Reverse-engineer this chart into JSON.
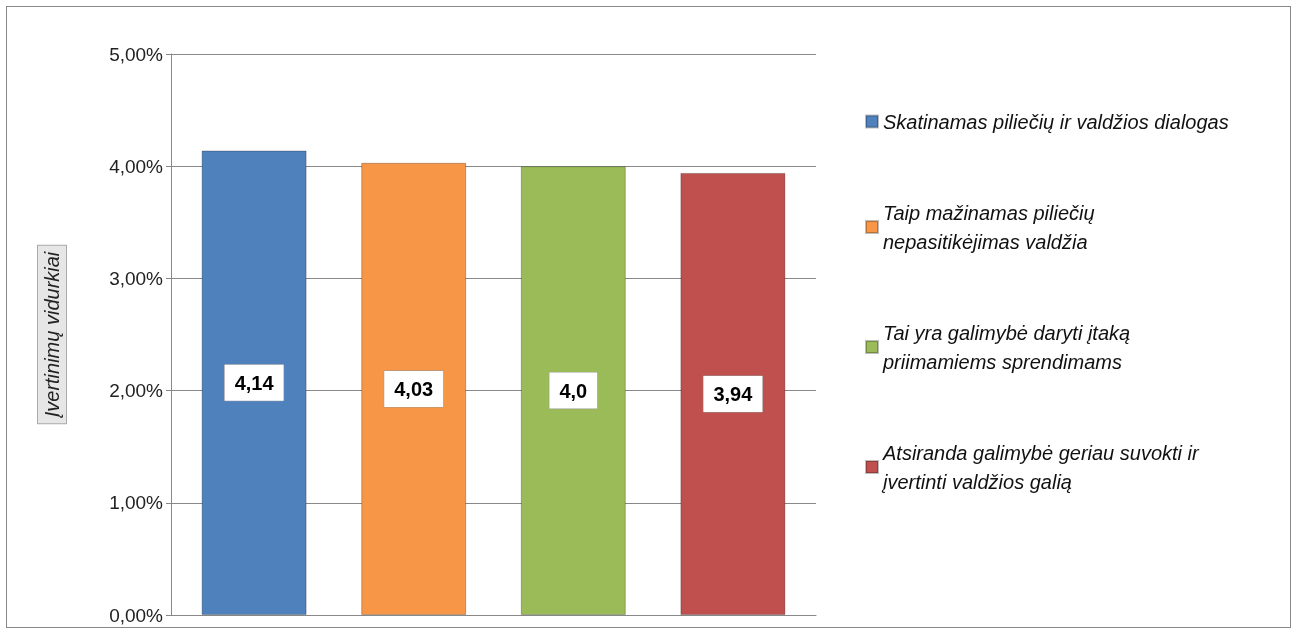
{
  "chart_data": {
    "type": "bar",
    "ylabel": "Įvertinimų vidurkiai",
    "categories": [
      null
    ],
    "series": [
      {
        "name": "Skatinamas piliečių ir valdžios dialogas",
        "color": "#4f81bd",
        "values": [
          4.14
        ],
        "value_labels": [
          "4,14"
        ]
      },
      {
        "name": "Taip mažinamas piliečių nepasitikėjimas valdžia",
        "color": "#f79646",
        "values": [
          4.03
        ],
        "value_labels": [
          "4,03"
        ]
      },
      {
        "name": "Tai yra galimybė daryti įtaką priimamiems sprendimams",
        "color": "#9bbb59",
        "values": [
          4.0
        ],
        "value_labels": [
          "4,0"
        ]
      },
      {
        "name": "Atsiranda galimybė geriau suvokti ir įvertinti valdžios galią",
        "color": "#c0504d",
        "values": [
          3.94
        ],
        "value_labels": [
          "3,94"
        ]
      }
    ],
    "ylim": [
      0,
      5
    ],
    "yticks": [
      {
        "value": 0,
        "label": "0,00%"
      },
      {
        "value": 1,
        "label": "1,00%"
      },
      {
        "value": 2,
        "label": "2,00%"
      },
      {
        "value": 3,
        "label": "3,00%"
      },
      {
        "value": 4,
        "label": "4,00%"
      },
      {
        "value": 5,
        "label": "5,00%"
      }
    ],
    "grid": "y",
    "legend": "right"
  }
}
